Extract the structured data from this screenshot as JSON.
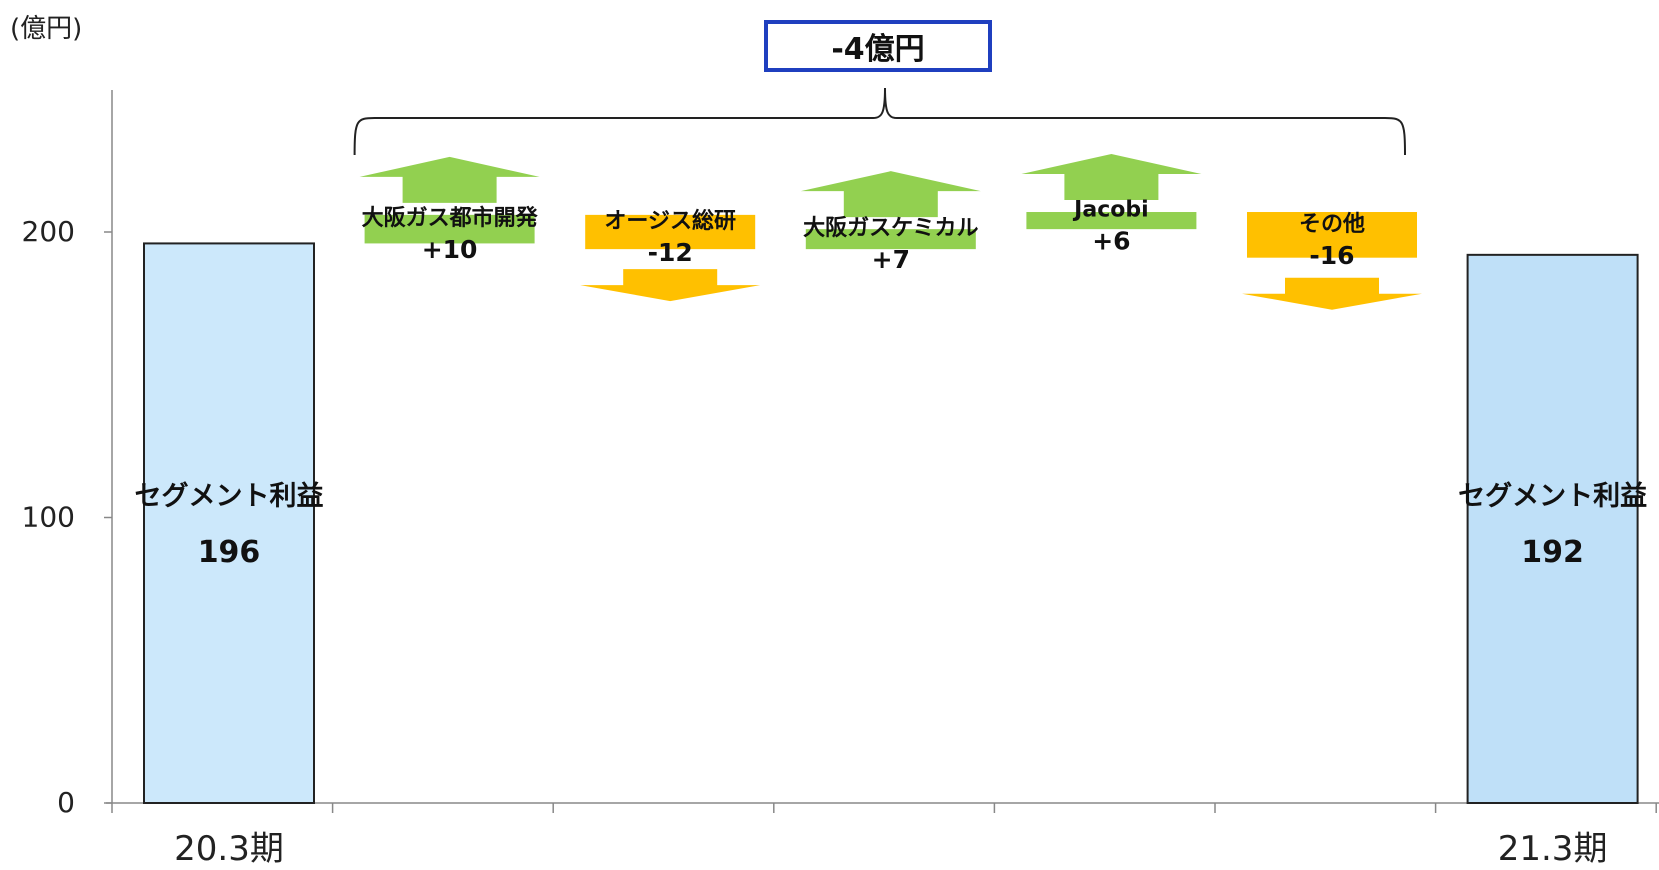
{
  "unit": "(億円)",
  "total_change_label": "-4億円",
  "chart_data": {
    "type": "bar",
    "subtype": "waterfall",
    "ylim": [
      0,
      240
    ],
    "yticks": [
      0,
      100,
      200
    ],
    "grid": false,
    "categories": [
      "20.3期",
      "大阪ガス都市開発",
      "オージス総研",
      "大阪ガスケミカル",
      "Jacobi",
      "その他",
      "21.3期"
    ],
    "start": {
      "label": "20.3期",
      "name": "セグメント利益",
      "value": 196
    },
    "end": {
      "label": "21.3期",
      "name": "セグメント利益",
      "value": 192
    },
    "changes": [
      {
        "name": "大阪ガス都市開発",
        "value": 10,
        "label": "+10"
      },
      {
        "name": "オージス総研",
        "value": -12,
        "label": "-12"
      },
      {
        "name": "大阪ガスケミカル",
        "value": 7,
        "label": "+7"
      },
      {
        "name": "Jacobi",
        "value": 6,
        "label": "+6"
      },
      {
        "name": "その他",
        "value": -16,
        "label": "-16"
      }
    ],
    "total_change": -4,
    "colors": {
      "bar_fill": "#cce8fb",
      "bar_fill_end": "#bfe0f8",
      "bar_stroke": "#222222",
      "increase": "#92d050",
      "decrease": "#ffc000",
      "axis": "#888888",
      "total_box_border": "#1f3fbf"
    }
  }
}
